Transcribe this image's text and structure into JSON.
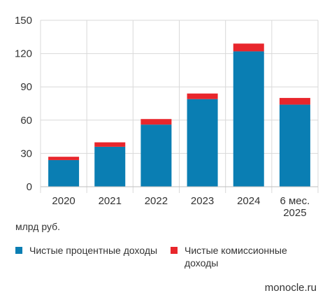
{
  "chart_data": {
    "type": "bar",
    "stacked": true,
    "categories": [
      "2020",
      "2021",
      "2022",
      "2023",
      "2024",
      "6 мес. 2025"
    ],
    "series": [
      {
        "name": "Чистые процентные доходы",
        "color": "#0a7eb3",
        "values": [
          24,
          36,
          56,
          79,
          122,
          74
        ]
      },
      {
        "name": "Чистые комиссионные доходы",
        "color": "#e8262c",
        "values": [
          3,
          4,
          5,
          5,
          7,
          6
        ]
      }
    ],
    "ylim": [
      0,
      150
    ],
    "yticks": [
      0,
      30,
      60,
      90,
      120,
      150
    ],
    "grid": true,
    "ylabel": "",
    "xlabel": "",
    "legend_position": "bottom"
  },
  "unit_label": "млрд руб.",
  "source_label": "monocle.ru"
}
